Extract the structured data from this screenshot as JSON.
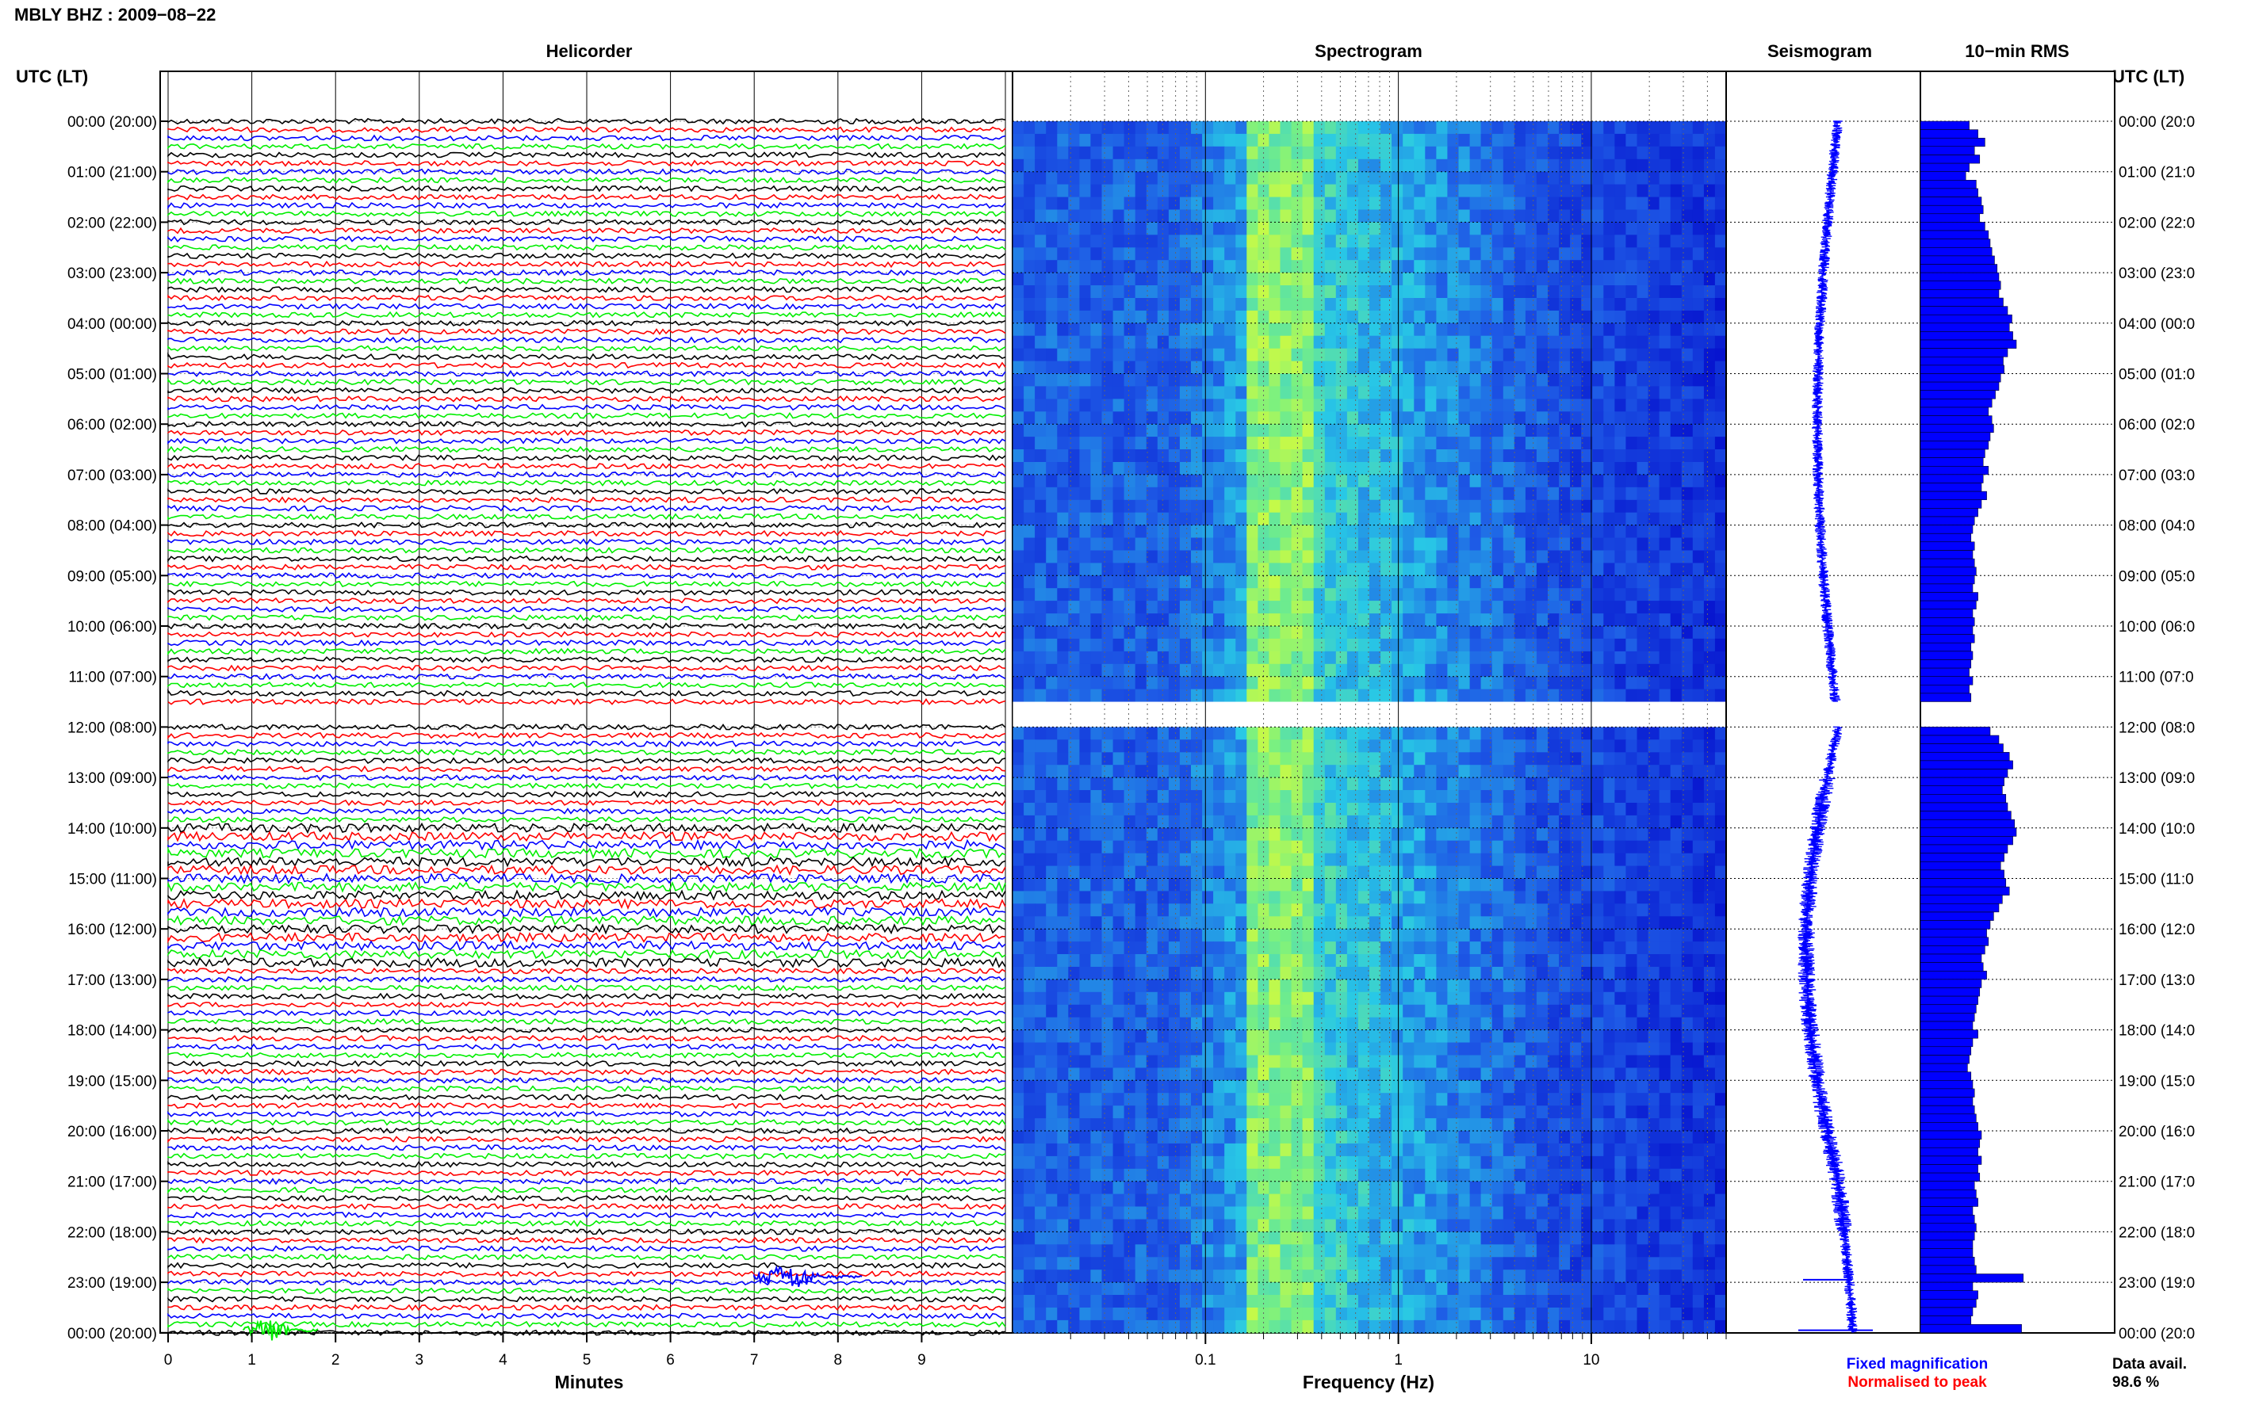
{
  "title": "MBLY BHZ : 2009−08−22",
  "headers": {
    "left_utc": "UTC (LT)",
    "right_utc": "UTC (LT)",
    "helicorder": "Helicorder",
    "spectrogram": "Spectrogram",
    "seismogram": "Seismogram",
    "rms": "10−min RMS"
  },
  "time_labels": [
    "00:00 (20:00)",
    "01:00 (21:00)",
    "02:00 (22:00)",
    "03:00 (23:00)",
    "04:00 (00:00)",
    "05:00 (01:00)",
    "06:00 (02:00)",
    "07:00 (03:00)",
    "08:00 (04:00)",
    "09:00 (05:00)",
    "10:00 (06:00)",
    "11:00 (07:00)",
    "12:00 (08:00)",
    "13:00 (09:00)",
    "14:00 (10:00)",
    "15:00 (11:00)",
    "16:00 (12:00)",
    "17:00 (13:00)",
    "18:00 (14:00)",
    "19:00 (15:00)",
    "20:00 (16:00)",
    "21:00 (17:00)",
    "22:00 (18:00)",
    "23:00 (19:00)",
    "00:00 (20:00)"
  ],
  "right_time_labels": [
    "00:00 (20:0",
    "01:00 (21:0",
    "02:00 (22:0",
    "03:00 (23:0",
    "04:00 (00:0",
    "05:00 (01:0",
    "06:00 (02:0",
    "07:00 (03:0",
    "08:00 (04:0",
    "09:00 (05:0",
    "10:00 (06:0",
    "11:00 (07:0",
    "12:00 (08:0",
    "13:00 (09:0",
    "14:00 (10:0",
    "15:00 (11:0",
    "16:00 (12:0",
    "17:00 (13:0",
    "18:00 (14:0",
    "19:00 (15:0",
    "20:00 (16:0",
    "21:00 (17:0",
    "22:00 (18:0",
    "23:00 (19:0",
    "00:00 (20:0"
  ],
  "x_axes": {
    "minutes_label": "Minutes",
    "minutes_ticks": [
      "0",
      "1",
      "2",
      "3",
      "4",
      "5",
      "6",
      "7",
      "8",
      "9"
    ],
    "frequency_label": "Frequency (Hz)",
    "frequency_ticks": [
      "0.1",
      "1",
      "10"
    ]
  },
  "legend": {
    "fixed": "Fixed magnification",
    "normalised": "Normalised to peak",
    "fixed_color": "#0000ff",
    "normalised_color": "#ff0000"
  },
  "data_avail": {
    "label": "Data avail.",
    "value": "98.6 %"
  },
  "colors": {
    "trace_cycle": [
      "#000000",
      "#ff0000",
      "#0000ff",
      "#00ee00"
    ],
    "seismogram": "#0000ff",
    "rms_bar": "#0000ff",
    "spectrogram_low": "#0000c8",
    "spectrogram_high": "#f0ff20"
  },
  "chart_data": [
    {
      "type": "line",
      "name": "helicorder",
      "xlabel": "Minutes",
      "x_range": [
        0,
        10
      ],
      "rows_per_hour": 6,
      "total_rows": 145,
      "gap_hours": [
        11.5,
        12.0
      ],
      "events": [
        {
          "minute_start": 7.0,
          "minute_end": 8.3,
          "hour": 22.9,
          "trace_color": "#0000ff"
        },
        {
          "minute_start": 0.9,
          "minute_end": 1.8,
          "hour": 23.95,
          "trace_color": "#00ee00"
        }
      ]
    },
    {
      "type": "heatmap",
      "name": "spectrogram",
      "xlabel": "Frequency (Hz)",
      "x_scale": "log",
      "xlim": [
        0.01,
        50
      ],
      "y_range_hours": [
        0,
        24
      ],
      "gap_hours": [
        11.5,
        12.0
      ],
      "peak_band_hz": [
        0.15,
        0.35
      ]
    },
    {
      "type": "line",
      "name": "seismogram",
      "y_range_hours": [
        0,
        24
      ],
      "gap_hours": [
        11.5,
        12.0
      ]
    },
    {
      "type": "bar",
      "name": "rms",
      "orientation": "horizontal",
      "y_range_hours": [
        0,
        24
      ],
      "interval_minutes": 10,
      "values": [
        0.56,
        0.66,
        0.74,
        0.62,
        0.68,
        0.56,
        0.52,
        0.64,
        0.66,
        0.7,
        0.72,
        0.68,
        0.74,
        0.78,
        0.8,
        0.82,
        0.85,
        0.88,
        0.9,
        0.92,
        0.9,
        0.95,
        1.0,
        1.05,
        1.02,
        1.06,
        1.1,
        1.0,
        0.95,
        0.96,
        0.92,
        0.9,
        0.86,
        0.82,
        0.78,
        0.82,
        0.84,
        0.8,
        0.78,
        0.74,
        0.72,
        0.78,
        0.72,
        0.7,
        0.76,
        0.7,
        0.66,
        0.62,
        0.6,
        0.58,
        0.62,
        0.6,
        0.62,
        0.64,
        0.62,
        0.6,
        0.66,
        0.64,
        0.6,
        0.62,
        0.6,
        0.62,
        0.58,
        0.6,
        0.58,
        0.56,
        0.6,
        0.56,
        0.58,
        0.62,
        0.6,
        0.72,
        0.8,
        0.9,
        0.95,
        1.02,
        1.06,
        1.0,
        0.96,
        0.94,
        0.98,
        1.0,
        1.04,
        1.08,
        1.1,
        1.06,
        1.0,
        0.96,
        0.92,
        0.96,
        0.98,
        1.02,
        0.94,
        0.9,
        0.84,
        0.8,
        0.76,
        0.78,
        0.74,
        0.7,
        0.72,
        0.76,
        0.7,
        0.68,
        0.66,
        0.64,
        0.62,
        0.6,
        0.66,
        0.6,
        0.58,
        0.56,
        0.54,
        0.58,
        0.6,
        0.62,
        0.6,
        0.62,
        0.64,
        0.66,
        0.7,
        0.68,
        0.66,
        0.7,
        0.66,
        0.68,
        0.62,
        0.64,
        0.66,
        0.6,
        0.62,
        0.64,
        0.62,
        0.6,
        0.6,
        0.62,
        0.64,
        0.62,
        0.6,
        0.66,
        0.64,
        0.6,
        0.58,
        0.56,
        0.6
      ]
    }
  ]
}
